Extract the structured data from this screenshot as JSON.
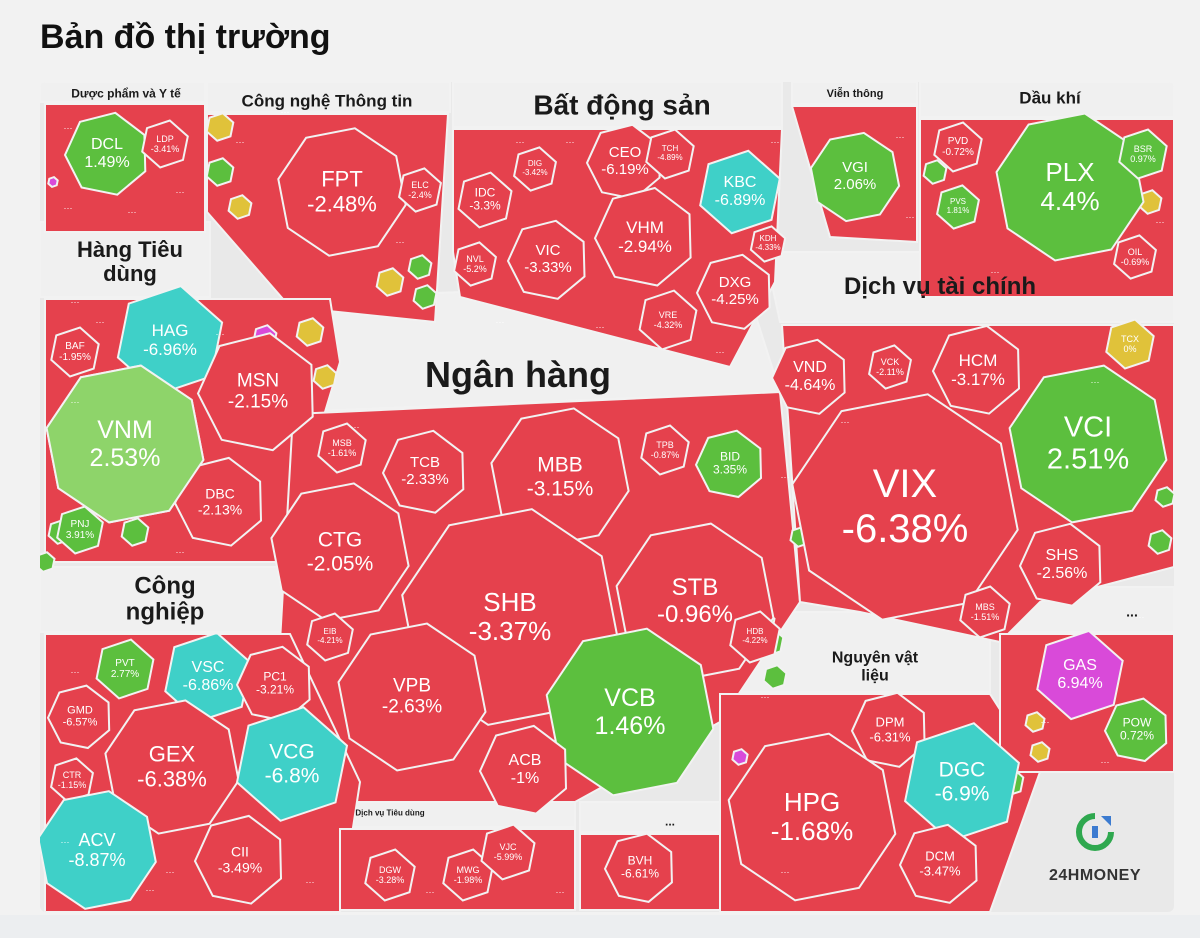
{
  "page": {
    "title": "Bản đồ thị trường"
  },
  "logo": {
    "text": "24HMONEY"
  },
  "colors": {
    "down": "#e5414d",
    "up": "#5cbf3e",
    "up_light": "#8ed46a",
    "ceiling": "#d94ad9",
    "floor": "#3fd0c8",
    "ref": "#e0c23a",
    "gutter": "#f2f2f2",
    "header_bg": "#f0f0f0"
  },
  "chart_data": {
    "type": "treemap",
    "title": "Bản đồ thị trường",
    "sectors": [
      {
        "name": "Dược phẩm và Y tế",
        "stocks": [
          {
            "code": "DCL",
            "change": "1.49%"
          },
          {
            "code": "LDP",
            "change": "-3.41%"
          }
        ]
      },
      {
        "name": "Công nghệ Thông tin",
        "stocks": [
          {
            "code": "FPT",
            "change": "-2.48%"
          },
          {
            "code": "ELC",
            "change": "-2.4%"
          }
        ]
      },
      {
        "name": "Bất động sản",
        "stocks": [
          {
            "code": "CEO",
            "change": "-6.19%"
          },
          {
            "code": "DIG",
            "change": "-3.42%"
          },
          {
            "code": "TCH",
            "change": "-4.89%"
          },
          {
            "code": "KBC",
            "change": "-6.89%"
          },
          {
            "code": "IDC",
            "change": "-3.3%"
          },
          {
            "code": "VHM",
            "change": "-2.94%"
          },
          {
            "code": "VIC",
            "change": "-3.33%"
          },
          {
            "code": "NVL",
            "change": "-5.2%"
          },
          {
            "code": "KDH",
            "change": "-4.33%"
          },
          {
            "code": "DXG",
            "change": "-4.25%"
          },
          {
            "code": "VRE",
            "change": "-4.32%"
          }
        ]
      },
      {
        "name": "Viễn thông",
        "stocks": [
          {
            "code": "VGI",
            "change": "2.06%"
          }
        ]
      },
      {
        "name": "Dầu khí",
        "stocks": [
          {
            "code": "PVD",
            "change": "-0.72%"
          },
          {
            "code": "PLX",
            "change": "4.4%"
          },
          {
            "code": "BSR",
            "change": "0.97%"
          },
          {
            "code": "PVS",
            "change": "1.81%"
          },
          {
            "code": "OIL",
            "change": "-0.69%"
          }
        ]
      },
      {
        "name": "Hàng Tiêu dùng",
        "stocks": [
          {
            "code": "HAG",
            "change": "-6.96%"
          },
          {
            "code": "BAF",
            "change": "-1.95%"
          },
          {
            "code": "MSN",
            "change": "-2.15%"
          },
          {
            "code": "VNM",
            "change": "2.53%"
          },
          {
            "code": "DBC",
            "change": "-2.13%"
          },
          {
            "code": "PNJ",
            "change": "3.91%"
          }
        ]
      },
      {
        "name": "Ngân hàng",
        "stocks": [
          {
            "code": "MSB",
            "change": "-1.61%"
          },
          {
            "code": "TCB",
            "change": "-2.33%"
          },
          {
            "code": "MBB",
            "change": "-3.15%"
          },
          {
            "code": "TPB",
            "change": "-0.87%"
          },
          {
            "code": "BID",
            "change": "3.35%"
          },
          {
            "code": "CTG",
            "change": "-2.05%"
          },
          {
            "code": "SHB",
            "change": "-3.37%"
          },
          {
            "code": "STB",
            "change": "-0.96%"
          },
          {
            "code": "EIB",
            "change": "-4.21%"
          },
          {
            "code": "HDB",
            "change": "-4.22%"
          },
          {
            "code": "VPB",
            "change": "-2.63%"
          },
          {
            "code": "VCB",
            "change": "1.46%"
          },
          {
            "code": "ACB",
            "change": "-1%"
          }
        ]
      },
      {
        "name": "Dịch vụ tài chính",
        "stocks": [
          {
            "code": "VND",
            "change": "-4.64%"
          },
          {
            "code": "VCK",
            "change": "-2.11%"
          },
          {
            "code": "HCM",
            "change": "-3.17%"
          },
          {
            "code": "TCX",
            "change": "0%"
          },
          {
            "code": "VCI",
            "change": "2.51%"
          },
          {
            "code": "VIX",
            "change": "-6.38%"
          },
          {
            "code": "SHS",
            "change": "-2.56%"
          },
          {
            "code": "MBS",
            "change": "-1.51%"
          }
        ]
      },
      {
        "name": "Công nghiệp",
        "stocks": [
          {
            "code": "PVT",
            "change": "2.77%"
          },
          {
            "code": "VSC",
            "change": "-6.86%"
          },
          {
            "code": "PC1",
            "change": "-3.21%"
          },
          {
            "code": "GMD",
            "change": "-6.57%"
          },
          {
            "code": "GEX",
            "change": "-6.38%"
          },
          {
            "code": "VCG",
            "change": "-6.8%"
          },
          {
            "code": "CTR",
            "change": "-1.15%"
          },
          {
            "code": "ACV",
            "change": "-8.87%"
          },
          {
            "code": "CII",
            "change": "-3.49%"
          }
        ]
      },
      {
        "name": "Dịch vụ Tiêu dùng",
        "stocks": [
          {
            "code": "DGW",
            "change": "-3.28%"
          },
          {
            "code": "MWG",
            "change": "-1.98%"
          },
          {
            "code": "VJC",
            "change": "-5.99%"
          }
        ]
      },
      {
        "name": "...",
        "stocks": [
          {
            "code": "BVH",
            "change": "-6.61%"
          }
        ]
      },
      {
        "name": "Nguyên vật liệu",
        "stocks": [
          {
            "code": "DPM",
            "change": "-6.31%"
          },
          {
            "code": "HPG",
            "change": "-1.68%"
          },
          {
            "code": "DGC",
            "change": "-6.9%"
          },
          {
            "code": "DCM",
            "change": "-3.47%"
          }
        ]
      },
      {
        "name": "...",
        "stocks": [
          {
            "code": "GAS",
            "change": "6.94%"
          },
          {
            "code": "POW",
            "change": "0.72%"
          }
        ]
      }
    ]
  }
}
